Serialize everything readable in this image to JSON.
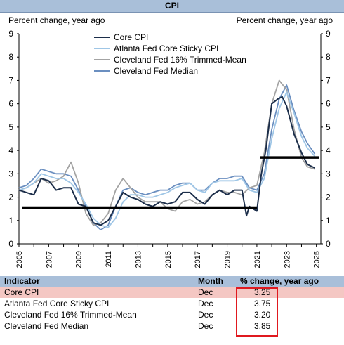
{
  "chart_data": {
    "type": "line",
    "title": "CPI",
    "ylabel_left": "Percent change, year ago",
    "ylabel_right": "Percent change, year ago",
    "ylim": [
      0,
      9
    ],
    "yticks": [
      "0",
      "1",
      "2",
      "3",
      "4",
      "5",
      "6",
      "7",
      "8",
      "9"
    ],
    "xlim": [
      2005,
      2025.3
    ],
    "xticks": [
      "2005",
      "2007",
      "2009",
      "2011",
      "2013",
      "2015",
      "2017",
      "2019",
      "2021",
      "2023",
      "2025"
    ],
    "grid": false,
    "legend": "top-center",
    "series": [
      {
        "name": "Core CPI",
        "color": "#1c2e4a",
        "x": [
          2005,
          2005.5,
          2006,
          2006.5,
          2007,
          2007.5,
          2008,
          2008.5,
          2009,
          2009.5,
          2010,
          2010.5,
          2011,
          2011.5,
          2012,
          2012.5,
          2013,
          2013.5,
          2014,
          2014.5,
          2015,
          2015.5,
          2016,
          2016.5,
          2017,
          2017.5,
          2018,
          2018.5,
          2019,
          2019.5,
          2020,
          2020.3,
          2020.5,
          2021,
          2021.3,
          2021.6,
          2022,
          2022.4,
          2022.7,
          2023,
          2023.5,
          2024,
          2024.4,
          2024.9
        ],
        "y": [
          2.3,
          2.2,
          2.1,
          2.8,
          2.7,
          2.3,
          2.4,
          2.4,
          1.7,
          1.6,
          0.9,
          0.8,
          1.0,
          1.6,
          2.2,
          2.0,
          1.9,
          1.7,
          1.6,
          1.8,
          1.7,
          1.8,
          2.2,
          2.2,
          1.9,
          1.7,
          2.1,
          2.3,
          2.1,
          2.3,
          2.3,
          1.2,
          1.6,
          1.4,
          3.0,
          4.0,
          6.0,
          6.2,
          6.3,
          5.9,
          4.7,
          3.9,
          3.4,
          3.25
        ]
      },
      {
        "name": "Atlanta Fed Core Sticky CPI",
        "color": "#9fc6e6",
        "x": [
          2005,
          2005.5,
          2006,
          2006.5,
          2007,
          2007.5,
          2008,
          2008.5,
          2009,
          2009.5,
          2010,
          2010.5,
          2011,
          2011.5,
          2012,
          2012.5,
          2013,
          2013.5,
          2014,
          2014.5,
          2015,
          2015.5,
          2016,
          2016.5,
          2017,
          2017.5,
          2018,
          2018.5,
          2019,
          2019.5,
          2020,
          2020.5,
          2021,
          2021.5,
          2022,
          2022.5,
          2023,
          2023.5,
          2024,
          2024.4,
          2024.9
        ],
        "y": [
          2.3,
          2.4,
          2.6,
          3.0,
          2.9,
          2.8,
          2.8,
          2.6,
          2.2,
          1.7,
          1.1,
          0.8,
          0.7,
          1.1,
          1.8,
          2.1,
          2.1,
          2.0,
          2.0,
          2.1,
          2.2,
          2.4,
          2.5,
          2.6,
          2.3,
          2.2,
          2.6,
          2.7,
          2.7,
          2.7,
          2.8,
          2.3,
          2.2,
          2.8,
          4.5,
          5.8,
          6.5,
          5.6,
          4.6,
          4.1,
          3.75
        ]
      },
      {
        "name": "Cleveland Fed 16% Trimmed-Mean",
        "color": "#a3a3a3",
        "x": [
          2005,
          2005.5,
          2006,
          2006.5,
          2007,
          2007.5,
          2008,
          2008.5,
          2009,
          2009.5,
          2010,
          2010.5,
          2011,
          2011.5,
          2012,
          2012.5,
          2013,
          2013.5,
          2014,
          2014.5,
          2015,
          2015.5,
          2016,
          2016.5,
          2017,
          2017.5,
          2018,
          2018.5,
          2019,
          2019.5,
          2020,
          2020.5,
          2021,
          2021.5,
          2022,
          2022.5,
          2023,
          2023.5,
          2024,
          2024.4,
          2024.9
        ],
        "y": [
          2.3,
          2.4,
          2.6,
          2.8,
          2.6,
          2.7,
          2.9,
          3.5,
          2.6,
          1.3,
          0.8,
          0.9,
          1.3,
          2.3,
          2.8,
          2.4,
          2.0,
          1.8,
          1.8,
          1.8,
          1.5,
          1.4,
          1.8,
          1.9,
          1.7,
          1.8,
          2.1,
          2.3,
          2.2,
          2.2,
          2.1,
          2.4,
          2.5,
          3.9,
          6.0,
          7.0,
          6.6,
          4.9,
          3.7,
          3.3,
          3.2
        ]
      },
      {
        "name": "Cleveland Fed Median",
        "color": "#6b8fc0",
        "x": [
          2005,
          2005.5,
          2006,
          2006.5,
          2007,
          2007.5,
          2008,
          2008.5,
          2009,
          2009.5,
          2010,
          2010.5,
          2011,
          2011.5,
          2012,
          2012.5,
          2013,
          2013.5,
          2014,
          2014.5,
          2015,
          2015.5,
          2016,
          2016.5,
          2017,
          2017.5,
          2018,
          2018.5,
          2019,
          2019.5,
          2020,
          2020.5,
          2021,
          2021.5,
          2022,
          2022.5,
          2023,
          2023.5,
          2024,
          2024.4,
          2024.9
        ],
        "y": [
          2.4,
          2.5,
          2.8,
          3.2,
          3.1,
          3.0,
          3.0,
          2.9,
          2.3,
          1.6,
          0.9,
          0.6,
          0.8,
          1.6,
          2.3,
          2.4,
          2.2,
          2.1,
          2.2,
          2.3,
          2.3,
          2.5,
          2.6,
          2.6,
          2.3,
          2.3,
          2.6,
          2.8,
          2.8,
          2.9,
          2.9,
          2.4,
          2.3,
          3.0,
          4.9,
          6.2,
          6.8,
          5.7,
          4.8,
          4.3,
          3.85
        ]
      }
    ],
    "reference_lines": [
      {
        "x": [
          2005.2,
          2021
        ],
        "y": 1.55
      },
      {
        "x": [
          2021.2,
          2025.2
        ],
        "y": 3.7
      }
    ]
  },
  "table": {
    "headers": {
      "indicator": "Indicator",
      "month": "Month",
      "value": "% change, year ago"
    },
    "rows": [
      {
        "indicator": "Core CPI",
        "month": "Dec",
        "value": "3.25"
      },
      {
        "indicator": "Atlanta Fed Core Sticky CPI",
        "month": "Dec",
        "value": "3.75"
      },
      {
        "indicator": "Cleveland Fed 16% Trimmed-Mean",
        "month": "Dec",
        "value": "3.20"
      },
      {
        "indicator": "Cleveland Fed Median",
        "month": "Dec",
        "value": "3.85"
      }
    ],
    "highlight_color": "#f4c7c3",
    "box_color": "#e0191f"
  }
}
